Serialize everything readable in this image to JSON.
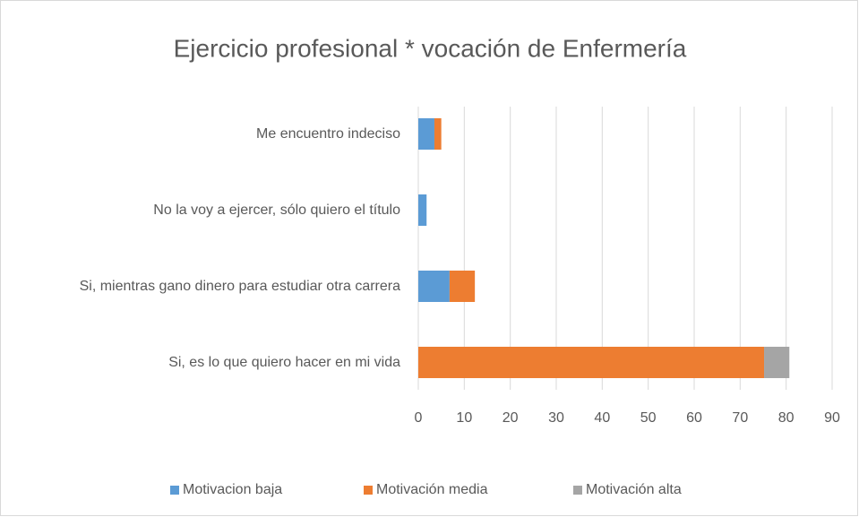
{
  "chart_data": {
    "type": "stacked_barh",
    "title": "Ejercicio profesional * vocación de Enfermería",
    "categories": [
      "Me encuentro indeciso",
      "No la voy a ejercer, sólo quiero el título",
      "Si, mientras gano dinero para estudiar otra carrera",
      "Si, es lo que quiero hacer en mi vida"
    ],
    "series": [
      {
        "name": "Motivacion baja",
        "color": "#5b9bd5",
        "values": [
          3.5,
          1.8,
          6.8,
          0
        ]
      },
      {
        "name": "Motivación media",
        "color": "#ed7d31",
        "values": [
          1.5,
          0,
          5.5,
          75.2
        ]
      },
      {
        "name": "Motivación alta",
        "color": "#a5a5a5",
        "values": [
          0,
          0,
          0,
          5.5
        ]
      }
    ],
    "xlim": [
      0,
      90
    ],
    "xticks": [
      0,
      10,
      20,
      30,
      40,
      50,
      60,
      70,
      80,
      90
    ],
    "grid": true,
    "legend": "bottom"
  }
}
